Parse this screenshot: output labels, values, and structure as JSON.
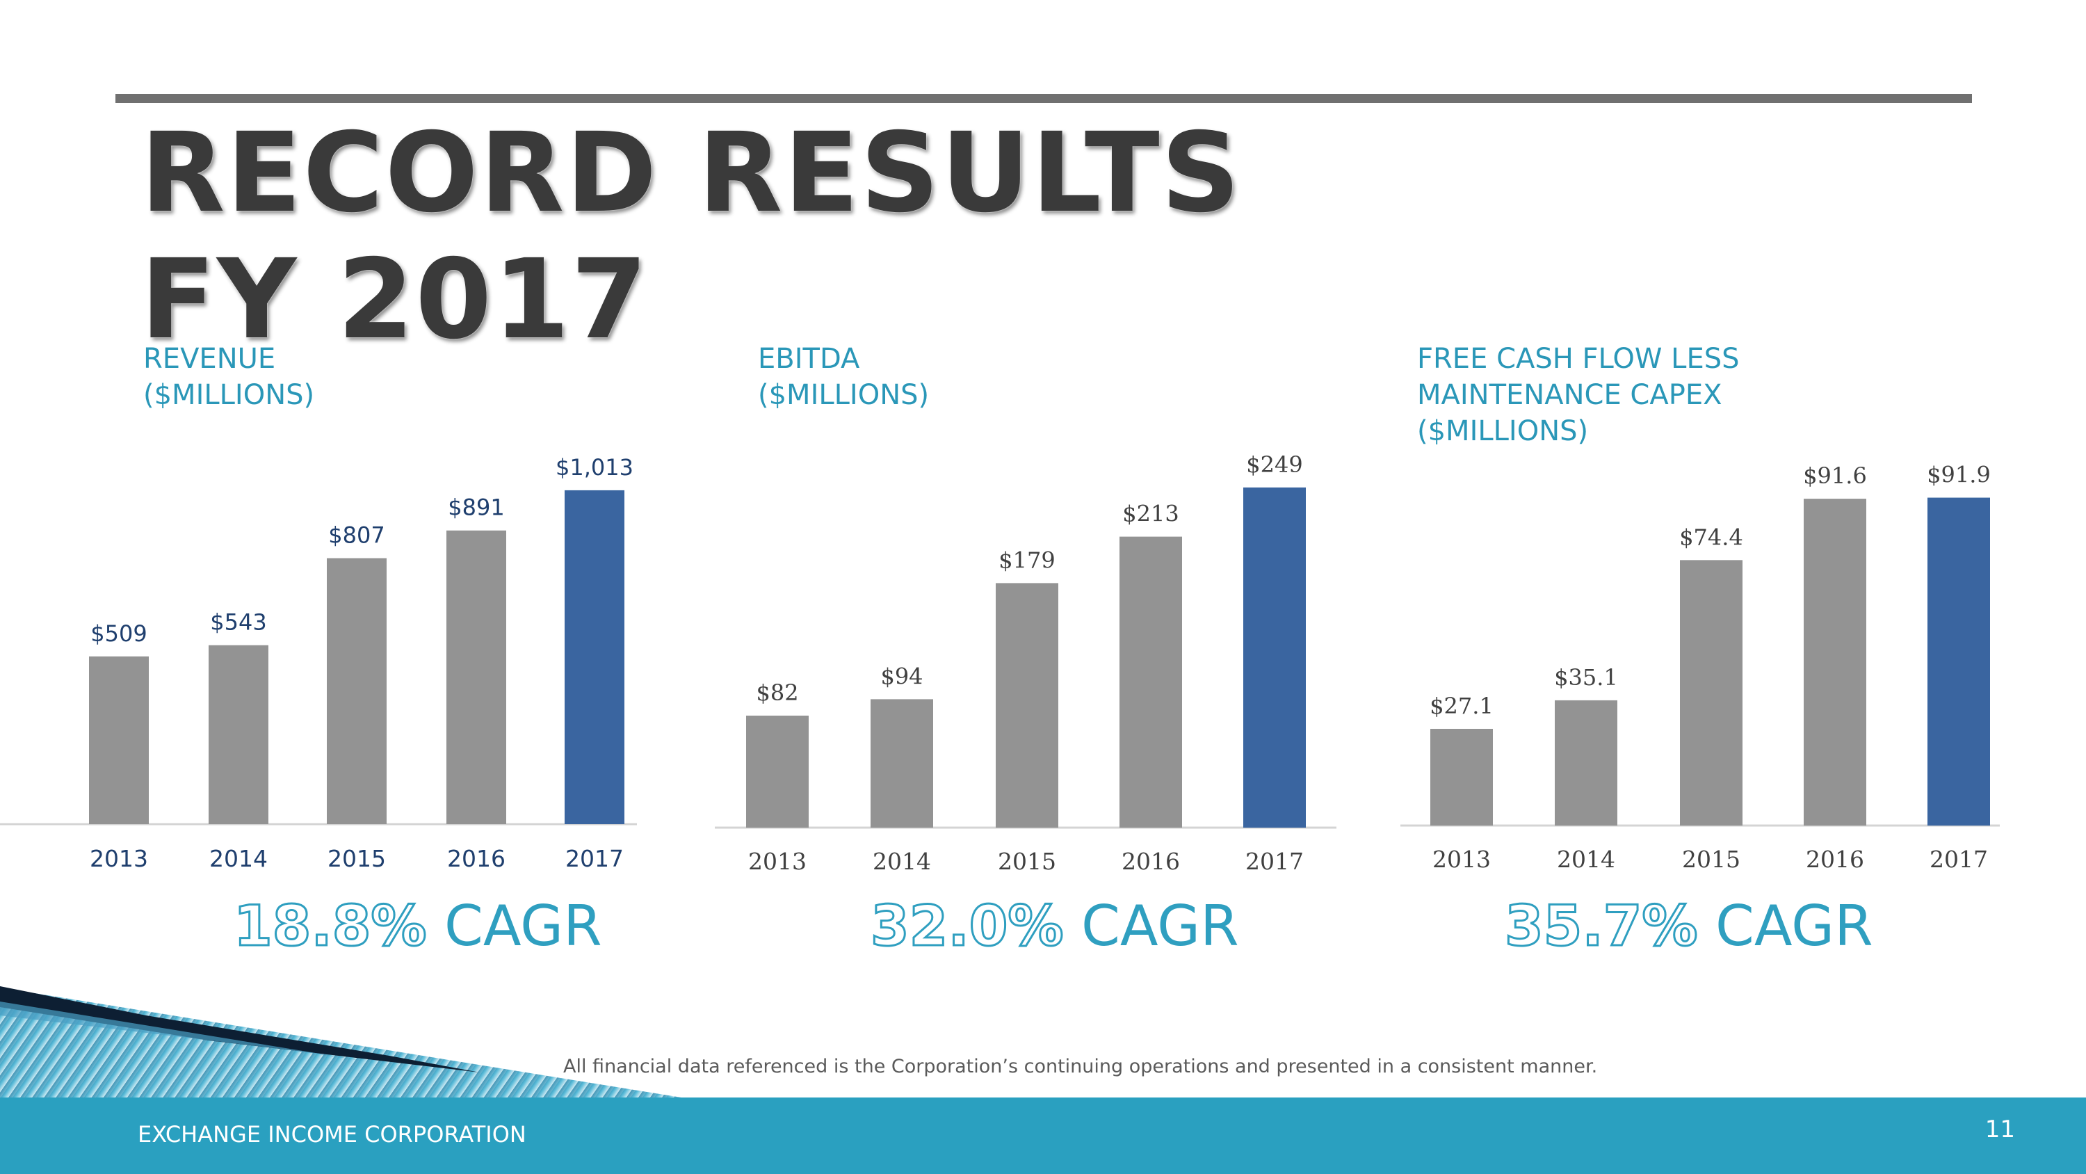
{
  "slide": {
    "title_line1": "RECORD RESULTS",
    "title_line2": "FY 2017",
    "footnote": "All financial data referenced is the Corporation’s continuing operations and presented in a consistent manner.",
    "company": "EXCHANGE INCOME CORPORATION",
    "page_number": "11",
    "colors": {
      "accent": "#2aa0c0",
      "bar_gray": "#939393",
      "bar_highlight": "#3a65a0",
      "title": "#3a3a3a"
    }
  },
  "cagr": [
    {
      "value": "18.8%",
      "label": " CAGR"
    },
    {
      "value": "32.0%",
      "label": " CAGR"
    },
    {
      "value": "35.7%",
      "label": " CAGR"
    }
  ],
  "chart_data": [
    {
      "type": "bar",
      "title_line1": "REVENUE",
      "title_line2": "($MILLIONS)",
      "title_line3": "",
      "categories": [
        "2013",
        "2014",
        "2015",
        "2016",
        "2017"
      ],
      "values": [
        509,
        543,
        807,
        891,
        1013
      ],
      "labels": [
        "$509",
        "$543",
        "$807",
        "$891",
        "$1,013"
      ],
      "highlight_index": 4,
      "ylim": [
        0,
        1150
      ],
      "grid": false,
      "legend": "none"
    },
    {
      "type": "bar",
      "title_line1": "EBITDA",
      "title_line2": "($MILLIONS)",
      "title_line3": "",
      "categories": [
        "2013",
        "2014",
        "2015",
        "2016",
        "2017"
      ],
      "values": [
        82,
        94,
        179,
        213,
        249
      ],
      "labels": [
        "$82",
        "$94",
        "$179",
        "$213",
        "$249"
      ],
      "highlight_index": 4,
      "ylim": [
        0,
        280
      ],
      "grid": false,
      "legend": "none"
    },
    {
      "type": "bar",
      "title_line1": "FREE CASH FLOW LESS",
      "title_line2": "MAINTENANCE CAPEX",
      "title_line3": "($MILLIONS)",
      "categories": [
        "2013",
        "2014",
        "2015",
        "2016",
        "2017"
      ],
      "values": [
        27.1,
        35.1,
        74.4,
        91.6,
        91.9
      ],
      "labels": [
        "$27.1",
        "$35.1",
        "$74.4",
        "$91.6",
        "$91.9"
      ],
      "highlight_index": 4,
      "ylim": [
        0,
        100
      ],
      "grid": false,
      "legend": "none"
    }
  ]
}
